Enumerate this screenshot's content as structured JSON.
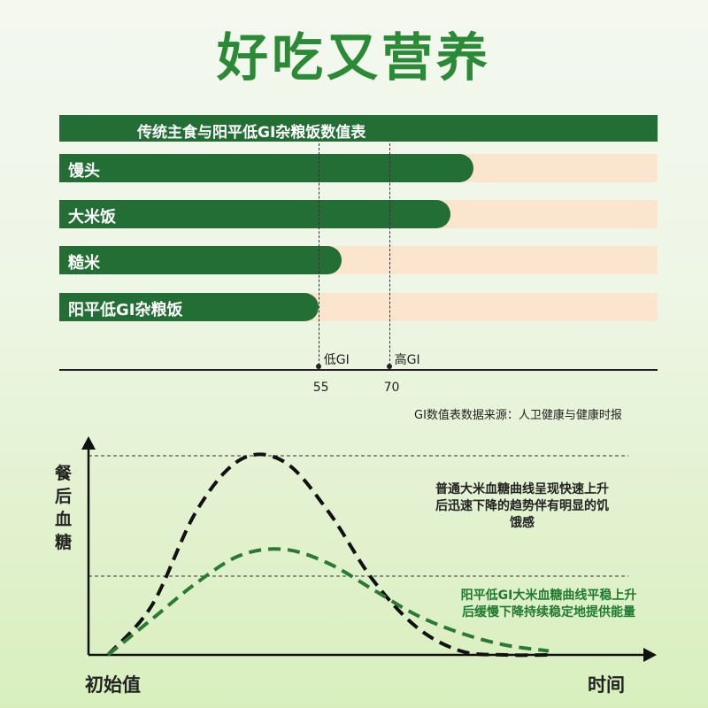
{
  "headline": "好吃又营养",
  "chart_data": [
    {
      "type": "bar",
      "title": "传统主食与阳平低GI杂粮饭数值表",
      "categories": [
        "馒头",
        "大米饭",
        "糙米",
        "阳平低GI杂粮饭"
      ],
      "values": [
        88,
        83,
        60,
        55
      ],
      "xlim": [
        0,
        127
      ],
      "thresholds": [
        {
          "value": 55,
          "label": "低GI",
          "tick": "55"
        },
        {
          "value": 70,
          "label": "高GI",
          "tick": "70"
        }
      ],
      "source": "GI数值表数据来源：人卫健康与健康时报"
    },
    {
      "type": "line",
      "ylabel": "餐后血糖",
      "xlabel": "时间",
      "origin_label": "初始值",
      "series": [
        {
          "color": "#111111",
          "note": "普通大米血糖曲线呈现快速上升后迅速下降的趋势伴有明显的饥饿感",
          "x": [
            0,
            1,
            2,
            3,
            4,
            5,
            6,
            7,
            8,
            9,
            10
          ],
          "y": [
            0,
            0.25,
            0.72,
            0.98,
            0.97,
            0.72,
            0.38,
            0.14,
            0.02,
            0,
            0
          ]
        },
        {
          "color": "#2a7a35",
          "note": "阳平低GI大米血糖曲线平稳上升后缓慢下降持续稳定地提供能量",
          "x": [
            0,
            1,
            2,
            3,
            4,
            5,
            6,
            7,
            8,
            9,
            10
          ],
          "y": [
            0,
            0.18,
            0.36,
            0.5,
            0.53,
            0.46,
            0.33,
            0.2,
            0.11,
            0.05,
            0.02
          ]
        }
      ]
    }
  ]
}
